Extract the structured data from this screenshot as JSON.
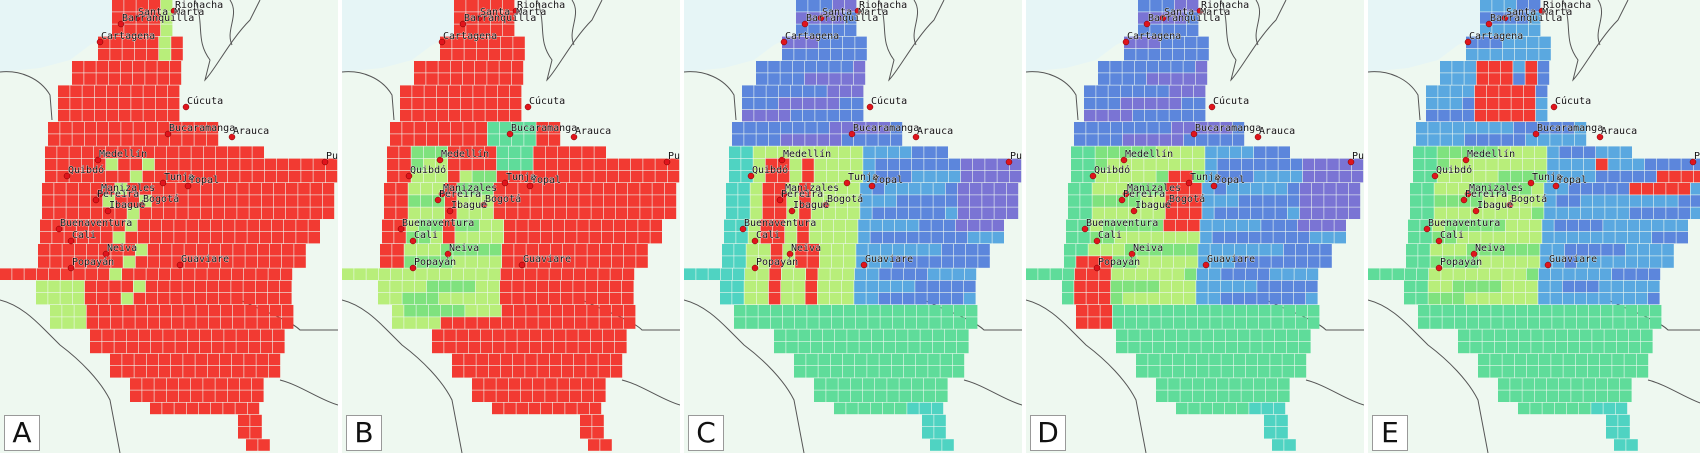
{
  "panels": [
    {
      "label": "A",
      "scheme": "A"
    },
    {
      "label": "B",
      "scheme": "B"
    },
    {
      "label": "C",
      "scheme": "C"
    },
    {
      "label": "D",
      "scheme": "D"
    },
    {
      "label": "E",
      "scheme": "E"
    }
  ],
  "cities": [
    "Riohacha",
    "Santa Marta",
    "Barranquilla",
    "Cartagena",
    "Cúcuta",
    "Bucaramanga",
    "Arauca",
    "Medellín",
    "Quibdó",
    "Tunja",
    "Yopal",
    "Manizales",
    "Pereira",
    "Bogotá",
    "Ibagué",
    "Buenaventura",
    "Cali",
    "Neiva",
    "Popayán",
    "Guaviare",
    "Pue"
  ],
  "colors": {
    "red": "#f23a32",
    "light_green": "#b8ee7a",
    "green": "#7fe27e",
    "teal_green": "#5fdc9a",
    "teal": "#4fd3c2",
    "blue": "#5aa8e0",
    "royal_blue": "#5c86dc",
    "purple": "#7a74d4",
    "land": "#eef8f0",
    "sea": "#e6f5f6",
    "border": "#555555"
  }
}
